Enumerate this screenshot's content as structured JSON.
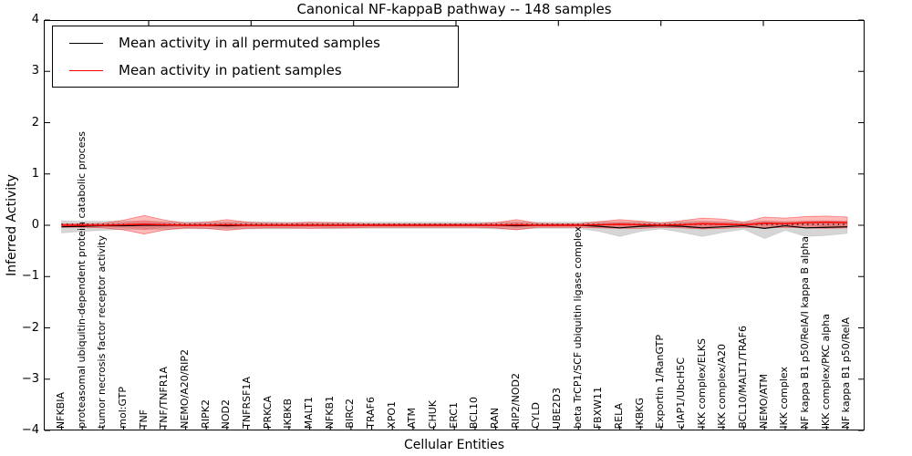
{
  "title": "Canonical NF-kappaB pathway -- 148 samples",
  "axes": {
    "ylabel": "Inferred Activity",
    "xlabel": "Cellular Entities",
    "yticks": [
      4,
      3,
      2,
      1,
      0,
      -1,
      -2,
      -3,
      -4
    ],
    "ylim": [
      -4,
      4
    ]
  },
  "legend": {
    "position": "upper left",
    "items": [
      {
        "label": "Mean activity in all permuted samples",
        "color": "#000000"
      },
      {
        "label": "Mean activity in patient samples",
        "color": "#ff0000"
      }
    ]
  },
  "colors": {
    "permuted_line": "#000000",
    "patient_line": "#ff0000",
    "permuted_band": "rgba(0,0,0,0.16)",
    "patient_band": "rgba(255,0,0,0.27)",
    "zero_line": "#000000"
  },
  "chart_data": {
    "type": "line",
    "title": "Canonical NF-kappaB pathway -- 148 samples",
    "xlabel": "Cellular Entities",
    "ylabel": "Inferred Activity",
    "ylim": [
      -4,
      4
    ],
    "grid": false,
    "legend_position": "upper left",
    "categories": [
      "NFKBIA",
      "proteasomal ubiquitin-dependent protein catabolic process",
      "tumor necrosis factor receptor activity",
      "mol:GTP",
      "TNF",
      "TNF/TNFR1A",
      "NEMO/A20/RIP2",
      "RIPK2",
      "NOD2",
      "TNFRSF1A",
      "PRKCA",
      "IKBKB",
      "MALT1",
      "NFKB1",
      "BIRC2",
      "TRAF6",
      "XPO1",
      "ATM",
      "CHUK",
      "ERC1",
      "BCL10",
      "RAN",
      "RIP2/NOD2",
      "CYLD",
      "UBE2D3",
      "beta TrCP1/SCF ubiquitin ligase complex",
      "FBXW11",
      "RELA",
      "IKBKG",
      "Exportin 1/RanGTP",
      "cIAP1/UbcH5C",
      "IKK complex/ELKS",
      "IKK complex/A20",
      "BCL10/MALT1/TRAF6",
      "NEMO/ATM",
      "IKK complex",
      "NF kappa B1 p50/RelA/I kappa B alpha",
      "IKK complex/PKC alpha",
      "NF kappa B1 p50/RelA"
    ],
    "series": [
      {
        "name": "Mean activity in all permuted samples",
        "color": "#000000",
        "style": "solid",
        "values": [
          -0.03,
          -0.02,
          -0.01,
          -0.01,
          0,
          0,
          0,
          0,
          -0.01,
          0,
          0,
          0,
          0,
          0,
          0,
          0,
          0,
          0,
          0,
          0,
          0,
          0,
          -0.01,
          0,
          0,
          0,
          -0.02,
          -0.05,
          -0.02,
          -0.01,
          -0.02,
          -0.05,
          -0.03,
          -0.01,
          -0.06,
          -0.01,
          -0.05,
          -0.04,
          -0.03
        ]
      },
      {
        "name": "Mean activity in patient samples",
        "color": "#ff0000",
        "style": "solid",
        "values": [
          0,
          0,
          0,
          0.01,
          0.02,
          0.01,
          0,
          0,
          0.01,
          0,
          0,
          0,
          0,
          0,
          0,
          0,
          0,
          0,
          0,
          0,
          0,
          0,
          0.01,
          0,
          0,
          0,
          0.01,
          0.02,
          0.01,
          0,
          0.01,
          0.03,
          0.02,
          0.01,
          0.04,
          0.03,
          0.05,
          0.06,
          0.05
        ]
      },
      {
        "name": "zero reference",
        "color": "#000000",
        "style": "dotted",
        "values": [
          0,
          0,
          0,
          0,
          0,
          0,
          0,
          0,
          0,
          0,
          0,
          0,
          0,
          0,
          0,
          0,
          0,
          0,
          0,
          0,
          0,
          0,
          0,
          0,
          0,
          0,
          0,
          0,
          0,
          0,
          0,
          0,
          0,
          0,
          0,
          0,
          0,
          0,
          0
        ]
      }
    ],
    "bands": [
      {
        "name": "permuted samples spread",
        "color": "rgba(0,0,0,0.16)",
        "upper": [
          0.09,
          0.08,
          0.08,
          0.08,
          0.08,
          0.07,
          0.07,
          0.07,
          0.07,
          0.07,
          0.07,
          0.06,
          0.06,
          0.06,
          0.06,
          0.06,
          0.06,
          0.06,
          0.06,
          0.06,
          0.06,
          0.06,
          0.07,
          0.06,
          0.06,
          0.06,
          0.07,
          0.07,
          0.07,
          0.06,
          0.07,
          0.08,
          0.07,
          0.07,
          0.08,
          0.07,
          0.08,
          0.08,
          0.08
        ],
        "lower": [
          -0.15,
          -0.12,
          -0.1,
          -0.08,
          -0.08,
          -0.08,
          -0.07,
          -0.07,
          -0.08,
          -0.07,
          -0.07,
          -0.07,
          -0.06,
          -0.07,
          -0.06,
          -0.06,
          -0.06,
          -0.06,
          -0.06,
          -0.06,
          -0.06,
          -0.07,
          -0.08,
          -0.06,
          -0.06,
          -0.06,
          -0.12,
          -0.22,
          -0.12,
          -0.07,
          -0.14,
          -0.22,
          -0.14,
          -0.08,
          -0.26,
          -0.1,
          -0.22,
          -0.2,
          -0.16
        ]
      },
      {
        "name": "patient samples spread",
        "color": "rgba(255,0,0,0.27)",
        "upper": [
          0.03,
          0.03,
          0.04,
          0.1,
          0.19,
          0.1,
          0.04,
          0.06,
          0.11,
          0.06,
          0.04,
          0.04,
          0.06,
          0.05,
          0.04,
          0.03,
          0.03,
          0.03,
          0.03,
          0.03,
          0.03,
          0.05,
          0.11,
          0.04,
          0.03,
          0.03,
          0.07,
          0.11,
          0.08,
          0.04,
          0.09,
          0.14,
          0.12,
          0.06,
          0.16,
          0.14,
          0.17,
          0.18,
          0.16
        ],
        "lower": [
          -0.04,
          -0.04,
          -0.05,
          -0.09,
          -0.17,
          -0.09,
          -0.05,
          -0.06,
          -0.1,
          -0.06,
          -0.05,
          -0.05,
          -0.06,
          -0.05,
          -0.05,
          -0.04,
          -0.04,
          -0.04,
          -0.04,
          -0.04,
          -0.04,
          -0.05,
          -0.09,
          -0.04,
          -0.04,
          -0.04,
          -0.05,
          -0.06,
          -0.06,
          -0.04,
          -0.05,
          -0.07,
          -0.06,
          -0.04,
          -0.05,
          -0.04,
          -0.05,
          -0.06,
          -0.05
        ]
      }
    ]
  }
}
